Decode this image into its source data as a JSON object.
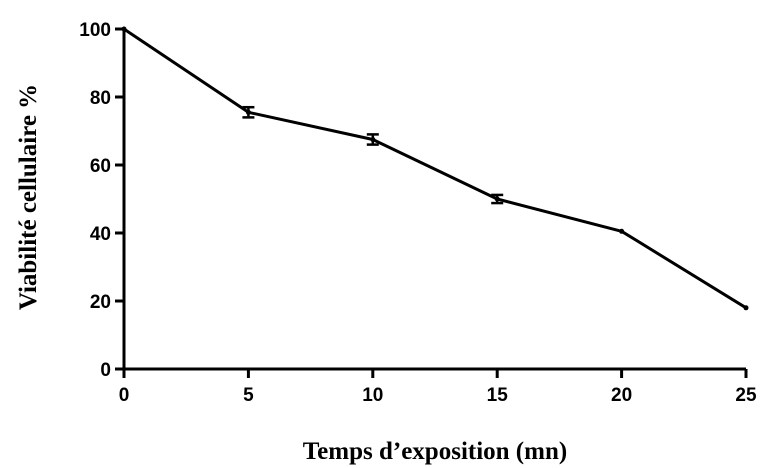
{
  "chart_data": {
    "type": "line",
    "title": "",
    "xlabel": "Temps d’exposition (mn)",
    "ylabel": "Viabilité cellulaire %",
    "xlim": [
      0,
      25
    ],
    "ylim": [
      0,
      100
    ],
    "xticks": [
      0,
      5,
      10,
      15,
      20,
      25
    ],
    "yticks": [
      0,
      20,
      40,
      60,
      80,
      100
    ],
    "grid": false,
    "legend": "none",
    "series": [
      {
        "x": [
          0,
          5,
          10,
          15,
          20,
          25
        ],
        "y": [
          100,
          75.5,
          67.5,
          50,
          40.5,
          18
        ],
        "error": [
          0,
          1.5,
          1.5,
          1.2,
          0.3,
          0.3
        ],
        "color": "#000000"
      }
    ]
  }
}
